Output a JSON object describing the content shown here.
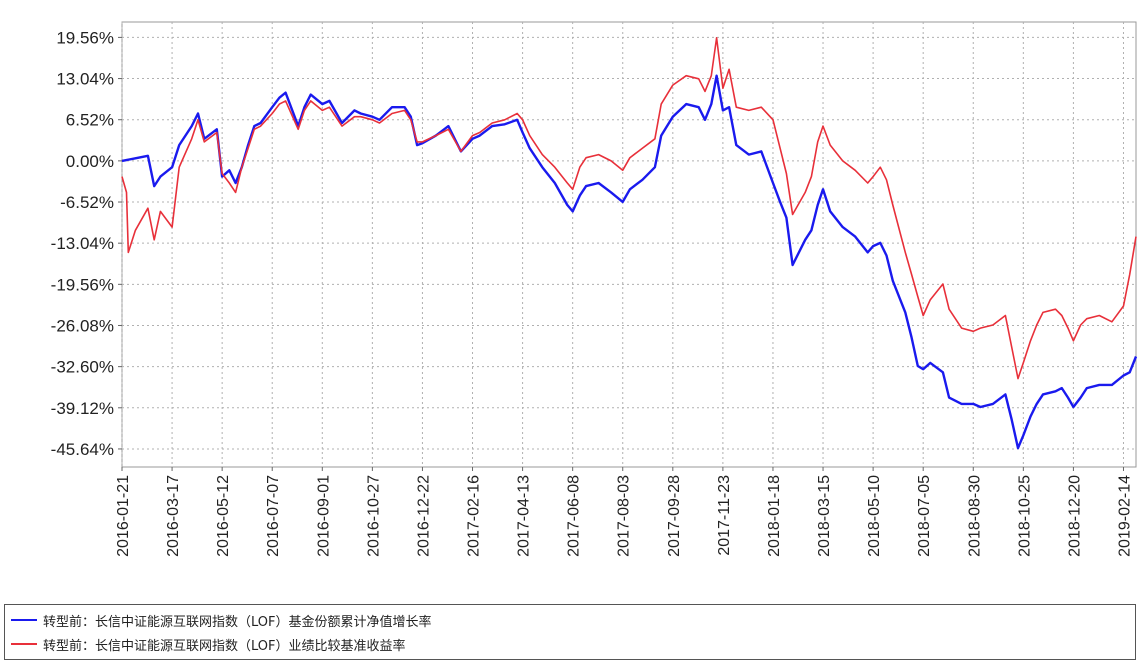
{
  "chart_data": {
    "type": "line",
    "title": "",
    "xlabel": "",
    "ylabel": "",
    "y_unit": "%",
    "ylim": [
      -48.5,
      22.0
    ],
    "y_ticks": [
      "19.56%",
      "13.04%",
      "6.52%",
      "0.00%",
      "-6.52%",
      "-13.04%",
      "-19.56%",
      "-26.08%",
      "-32.60%",
      "-39.12%",
      "-45.64%"
    ],
    "y_tick_values": [
      19.56,
      13.04,
      6.52,
      0.0,
      -6.52,
      -13.04,
      -19.56,
      -26.08,
      -32.6,
      -39.12,
      -45.64
    ],
    "x_range": [
      "2016-01-21",
      "2019-02-28"
    ],
    "x_ticks": [
      "2016-01-21",
      "2016-03-17",
      "2016-05-12",
      "2016-07-07",
      "2016-09-01",
      "2016-10-27",
      "2016-12-22",
      "2017-02-16",
      "2017-04-13",
      "2017-06-08",
      "2017-08-03",
      "2017-09-28",
      "2017-11-23",
      "2018-01-18",
      "2018-03-15",
      "2018-05-10",
      "2018-07-05",
      "2018-08-30",
      "2018-10-25",
      "2018-12-20",
      "2019-02-14"
    ],
    "grid": true,
    "legend_position": "bottom",
    "series": [
      {
        "name": "转型前：长信中证能源互联网指数（LOF）基金份额累计净值增长率",
        "color": "#1a1aee",
        "points": [
          [
            "2016-01-21",
            0.0
          ],
          [
            "2016-02-05",
            0.4
          ],
          [
            "2016-02-19",
            0.8
          ],
          [
            "2016-02-26",
            -4.0
          ],
          [
            "2016-03-04",
            -2.5
          ],
          [
            "2016-03-17",
            -1.0
          ],
          [
            "2016-03-25",
            2.5
          ],
          [
            "2016-04-08",
            5.5
          ],
          [
            "2016-04-15",
            7.5
          ],
          [
            "2016-04-22",
            3.5
          ],
          [
            "2016-05-06",
            5.0
          ],
          [
            "2016-05-12",
            -2.5
          ],
          [
            "2016-05-20",
            -1.5
          ],
          [
            "2016-05-27",
            -3.5
          ],
          [
            "2016-06-03",
            -1.0
          ],
          [
            "2016-06-10",
            2.5
          ],
          [
            "2016-06-17",
            5.5
          ],
          [
            "2016-06-24",
            6.0
          ],
          [
            "2016-07-07",
            8.5
          ],
          [
            "2016-07-15",
            10.0
          ],
          [
            "2016-07-22",
            10.8
          ],
          [
            "2016-08-05",
            5.5
          ],
          [
            "2016-08-12",
            8.5
          ],
          [
            "2016-08-19",
            10.5
          ],
          [
            "2016-09-01",
            9.0
          ],
          [
            "2016-09-09",
            9.5
          ],
          [
            "2016-09-23",
            6.0
          ],
          [
            "2016-10-07",
            8.0
          ],
          [
            "2016-10-14",
            7.5
          ],
          [
            "2016-10-27",
            7.0
          ],
          [
            "2016-11-04",
            6.5
          ],
          [
            "2016-11-18",
            8.5
          ],
          [
            "2016-12-02",
            8.5
          ],
          [
            "2016-12-09",
            7.0
          ],
          [
            "2016-12-16",
            2.5
          ],
          [
            "2016-12-22",
            2.8
          ],
          [
            "2017-01-06",
            4.0
          ],
          [
            "2017-01-20",
            5.5
          ],
          [
            "2017-02-03",
            1.5
          ],
          [
            "2017-02-16",
            3.5
          ],
          [
            "2017-02-24",
            4.0
          ],
          [
            "2017-03-10",
            5.5
          ],
          [
            "2017-03-24",
            5.8
          ],
          [
            "2017-04-07",
            6.5
          ],
          [
            "2017-04-13",
            4.5
          ],
          [
            "2017-04-21",
            2.0
          ],
          [
            "2017-05-05",
            -1.0
          ],
          [
            "2017-05-19",
            -3.5
          ],
          [
            "2017-06-02",
            -7.0
          ],
          [
            "2017-06-08",
            -8.0
          ],
          [
            "2017-06-16",
            -5.5
          ],
          [
            "2017-06-23",
            -4.0
          ],
          [
            "2017-07-07",
            -3.5
          ],
          [
            "2017-07-21",
            -5.0
          ],
          [
            "2017-08-03",
            -6.5
          ],
          [
            "2017-08-11",
            -4.5
          ],
          [
            "2017-08-25",
            -3.0
          ],
          [
            "2017-09-08",
            -1.0
          ],
          [
            "2017-09-15",
            4.0
          ],
          [
            "2017-09-28",
            7.0
          ],
          [
            "2017-10-13",
            9.0
          ],
          [
            "2017-10-27",
            8.5
          ],
          [
            "2017-11-03",
            6.5
          ],
          [
            "2017-11-10",
            9.0
          ],
          [
            "2017-11-16",
            13.5
          ],
          [
            "2017-11-23",
            8.0
          ],
          [
            "2017-11-30",
            8.5
          ],
          [
            "2017-12-08",
            2.5
          ],
          [
            "2017-12-22",
            1.0
          ],
          [
            "2018-01-05",
            1.5
          ],
          [
            "2018-01-18",
            -3.5
          ],
          [
            "2018-01-26",
            -6.5
          ],
          [
            "2018-02-02",
            -9.0
          ],
          [
            "2018-02-09",
            -16.5
          ],
          [
            "2018-02-23",
            -12.5
          ],
          [
            "2018-03-02",
            -11.0
          ],
          [
            "2018-03-09",
            -7.0
          ],
          [
            "2018-03-15",
            -4.5
          ],
          [
            "2018-03-23",
            -8.0
          ],
          [
            "2018-04-06",
            -10.5
          ],
          [
            "2018-04-20",
            -12.0
          ],
          [
            "2018-05-04",
            -14.5
          ],
          [
            "2018-05-10",
            -13.5
          ],
          [
            "2018-05-18",
            -13.0
          ],
          [
            "2018-05-25",
            -15.0
          ],
          [
            "2018-06-01",
            -19.0
          ],
          [
            "2018-06-15",
            -24.0
          ],
          [
            "2018-06-22",
            -28.0
          ],
          [
            "2018-06-29",
            -32.5
          ],
          [
            "2018-07-05",
            -33.0
          ],
          [
            "2018-07-13",
            -32.0
          ],
          [
            "2018-07-27",
            -33.5
          ],
          [
            "2018-08-03",
            -37.5
          ],
          [
            "2018-08-17",
            -38.5
          ],
          [
            "2018-08-30",
            -38.5
          ],
          [
            "2018-09-07",
            -39.0
          ],
          [
            "2018-09-21",
            -38.5
          ],
          [
            "2018-10-05",
            -37.0
          ],
          [
            "2018-10-12",
            -41.0
          ],
          [
            "2018-10-19",
            -45.5
          ],
          [
            "2018-10-25",
            -43.5
          ],
          [
            "2018-11-02",
            -40.5
          ],
          [
            "2018-11-09",
            -38.5
          ],
          [
            "2018-11-16",
            -37.0
          ],
          [
            "2018-11-30",
            -36.5
          ],
          [
            "2018-12-07",
            -36.0
          ],
          [
            "2018-12-14",
            -37.5
          ],
          [
            "2018-12-20",
            -39.0
          ],
          [
            "2018-12-28",
            -37.5
          ],
          [
            "2019-01-04",
            -36.0
          ],
          [
            "2019-01-18",
            -35.5
          ],
          [
            "2019-02-01",
            -35.5
          ],
          [
            "2019-02-14",
            -34.0
          ],
          [
            "2019-02-21",
            -33.5
          ],
          [
            "2019-02-28",
            -31.0
          ]
        ]
      },
      {
        "name": "转型前：长信中证能源互联网指数（LOF）业绩比较基准收益率",
        "color": "#e8303a",
        "points": [
          [
            "2016-01-21",
            -2.5
          ],
          [
            "2016-01-26",
            -5.0
          ],
          [
            "2016-01-28",
            -14.5
          ],
          [
            "2016-02-05",
            -11.0
          ],
          [
            "2016-02-19",
            -7.5
          ],
          [
            "2016-02-26",
            -12.5
          ],
          [
            "2016-03-04",
            -8.0
          ],
          [
            "2016-03-17",
            -10.5
          ],
          [
            "2016-03-25",
            -1.0
          ],
          [
            "2016-04-08",
            3.5
          ],
          [
            "2016-04-15",
            6.5
          ],
          [
            "2016-04-22",
            3.0
          ],
          [
            "2016-05-06",
            4.5
          ],
          [
            "2016-05-12",
            -2.0
          ],
          [
            "2016-05-20",
            -3.5
          ],
          [
            "2016-05-27",
            -5.0
          ],
          [
            "2016-06-03",
            -1.0
          ],
          [
            "2016-06-10",
            2.0
          ],
          [
            "2016-06-17",
            5.0
          ],
          [
            "2016-06-24",
            5.5
          ],
          [
            "2016-07-07",
            7.5
          ],
          [
            "2016-07-15",
            9.0
          ],
          [
            "2016-07-22",
            9.5
          ],
          [
            "2016-08-05",
            5.0
          ],
          [
            "2016-08-12",
            8.0
          ],
          [
            "2016-08-19",
            9.5
          ],
          [
            "2016-09-01",
            8.0
          ],
          [
            "2016-09-09",
            8.5
          ],
          [
            "2016-09-23",
            5.5
          ],
          [
            "2016-10-07",
            7.0
          ],
          [
            "2016-10-14",
            7.0
          ],
          [
            "2016-10-27",
            6.5
          ],
          [
            "2016-11-04",
            6.0
          ],
          [
            "2016-11-18",
            7.5
          ],
          [
            "2016-12-02",
            8.0
          ],
          [
            "2016-12-09",
            6.5
          ],
          [
            "2016-12-16",
            3.0
          ],
          [
            "2016-12-22",
            3.0
          ],
          [
            "2017-01-06",
            4.0
          ],
          [
            "2017-01-20",
            5.0
          ],
          [
            "2017-02-03",
            1.5
          ],
          [
            "2017-02-16",
            4.0
          ],
          [
            "2017-02-24",
            4.5
          ],
          [
            "2017-03-10",
            6.0
          ],
          [
            "2017-03-24",
            6.5
          ],
          [
            "2017-04-07",
            7.5
          ],
          [
            "2017-04-13",
            6.5
          ],
          [
            "2017-04-21",
            4.0
          ],
          [
            "2017-05-05",
            1.0
          ],
          [
            "2017-05-19",
            -1.0
          ],
          [
            "2017-06-02",
            -3.5
          ],
          [
            "2017-06-08",
            -4.5
          ],
          [
            "2017-06-16",
            -1.0
          ],
          [
            "2017-06-23",
            0.5
          ],
          [
            "2017-07-07",
            1.0
          ],
          [
            "2017-07-21",
            0.0
          ],
          [
            "2017-08-03",
            -1.5
          ],
          [
            "2017-08-11",
            0.5
          ],
          [
            "2017-08-25",
            2.0
          ],
          [
            "2017-09-08",
            3.5
          ],
          [
            "2017-09-15",
            9.0
          ],
          [
            "2017-09-28",
            12.0
          ],
          [
            "2017-10-13",
            13.5
          ],
          [
            "2017-10-27",
            13.0
          ],
          [
            "2017-11-03",
            11.0
          ],
          [
            "2017-11-10",
            13.5
          ],
          [
            "2017-11-16",
            19.5
          ],
          [
            "2017-11-23",
            11.5
          ],
          [
            "2017-11-30",
            14.5
          ],
          [
            "2017-12-08",
            8.5
          ],
          [
            "2017-12-22",
            8.0
          ],
          [
            "2018-01-05",
            8.5
          ],
          [
            "2018-01-18",
            6.5
          ],
          [
            "2018-01-26",
            2.0
          ],
          [
            "2018-02-02",
            -2.0
          ],
          [
            "2018-02-09",
            -8.5
          ],
          [
            "2018-02-23",
            -5.0
          ],
          [
            "2018-03-02",
            -2.5
          ],
          [
            "2018-03-09",
            3.0
          ],
          [
            "2018-03-15",
            5.5
          ],
          [
            "2018-03-23",
            2.5
          ],
          [
            "2018-04-06",
            0.0
          ],
          [
            "2018-04-20",
            -1.5
          ],
          [
            "2018-05-04",
            -3.5
          ],
          [
            "2018-05-10",
            -2.5
          ],
          [
            "2018-05-18",
            -1.0
          ],
          [
            "2018-05-25",
            -3.0
          ],
          [
            "2018-06-01",
            -7.0
          ],
          [
            "2018-06-15",
            -14.5
          ],
          [
            "2018-06-22",
            -18.0
          ],
          [
            "2018-06-29",
            -21.5
          ],
          [
            "2018-07-05",
            -24.5
          ],
          [
            "2018-07-13",
            -22.0
          ],
          [
            "2018-07-27",
            -19.5
          ],
          [
            "2018-08-03",
            -23.5
          ],
          [
            "2018-08-17",
            -26.5
          ],
          [
            "2018-08-30",
            -27.0
          ],
          [
            "2018-09-07",
            -26.5
          ],
          [
            "2018-09-21",
            -26.0
          ],
          [
            "2018-10-05",
            -24.5
          ],
          [
            "2018-10-12",
            -29.5
          ],
          [
            "2018-10-19",
            -34.5
          ],
          [
            "2018-10-25",
            -32.0
          ],
          [
            "2018-11-02",
            -28.5
          ],
          [
            "2018-11-09",
            -26.0
          ],
          [
            "2018-11-16",
            -24.0
          ],
          [
            "2018-11-30",
            -23.5
          ],
          [
            "2018-12-07",
            -24.5
          ],
          [
            "2018-12-14",
            -26.5
          ],
          [
            "2018-12-20",
            -28.5
          ],
          [
            "2018-12-28",
            -26.0
          ],
          [
            "2019-01-04",
            -25.0
          ],
          [
            "2019-01-18",
            -24.5
          ],
          [
            "2019-02-01",
            -25.5
          ],
          [
            "2019-02-14",
            -23.0
          ],
          [
            "2019-02-21",
            -18.0
          ],
          [
            "2019-02-28",
            -12.0
          ]
        ]
      }
    ]
  }
}
